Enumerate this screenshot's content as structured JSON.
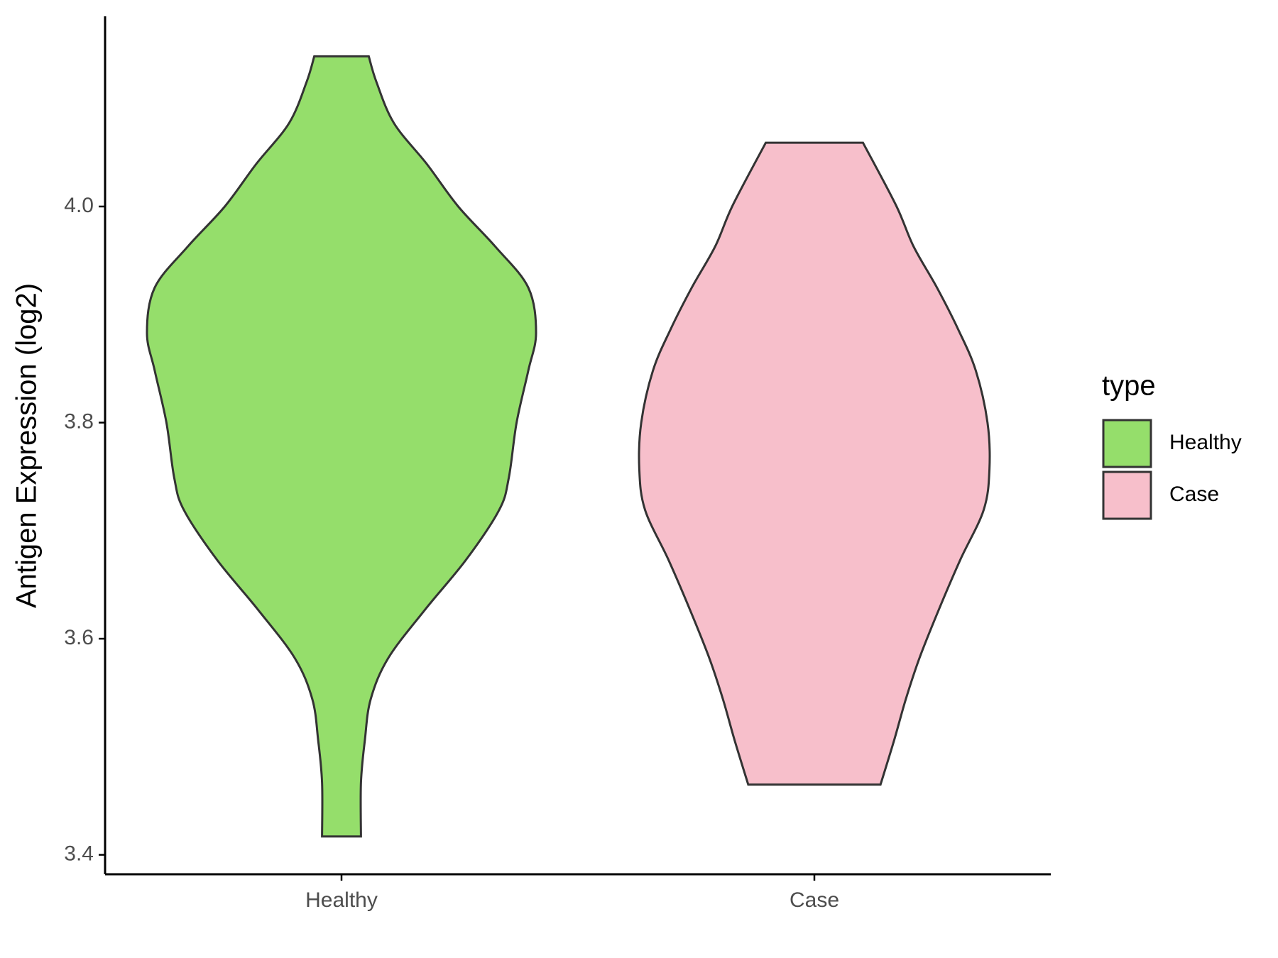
{
  "chart_data": {
    "type": "violin",
    "y_label": "Antigen Expression (log2)",
    "categories": [
      "Healthy",
      "Case"
    ],
    "legend_title": "type",
    "legend_position": "right",
    "ylim": [
      3.382,
      4.176
    ],
    "yticks": [
      {
        "value": 3.4,
        "label": "3.4"
      },
      {
        "value": 3.6,
        "label": "3.6"
      },
      {
        "value": 3.8,
        "label": "3.8"
      },
      {
        "value": 4.0,
        "label": "4.0"
      }
    ],
    "series": [
      {
        "name": "Healthy",
        "color": "#95de6b",
        "values": [
          4.139,
          4.115,
          4.077,
          4.039,
          4.0,
          3.963,
          3.925,
          3.883,
          3.848,
          3.8,
          3.749,
          3.719,
          3.673,
          3.627,
          3.582,
          3.544,
          3.506,
          3.467,
          3.417
        ],
        "density": [
          0.14,
          0.18,
          0.27,
          0.44,
          0.6,
          0.79,
          0.96,
          1.0,
          0.96,
          0.9,
          0.86,
          0.81,
          0.64,
          0.43,
          0.24,
          0.15,
          0.12,
          0.1,
          0.1
        ]
      },
      {
        "name": "Case",
        "color": "#f7bfcb",
        "values": [
          4.059,
          4.001,
          3.963,
          3.925,
          3.886,
          3.848,
          3.8,
          3.757,
          3.719,
          3.673,
          3.627,
          3.582,
          3.544,
          3.506,
          3.465
        ],
        "density": [
          0.25,
          0.42,
          0.51,
          0.63,
          0.74,
          0.83,
          0.89,
          0.9,
          0.87,
          0.75,
          0.64,
          0.54,
          0.47,
          0.41,
          0.34
        ]
      }
    ]
  }
}
